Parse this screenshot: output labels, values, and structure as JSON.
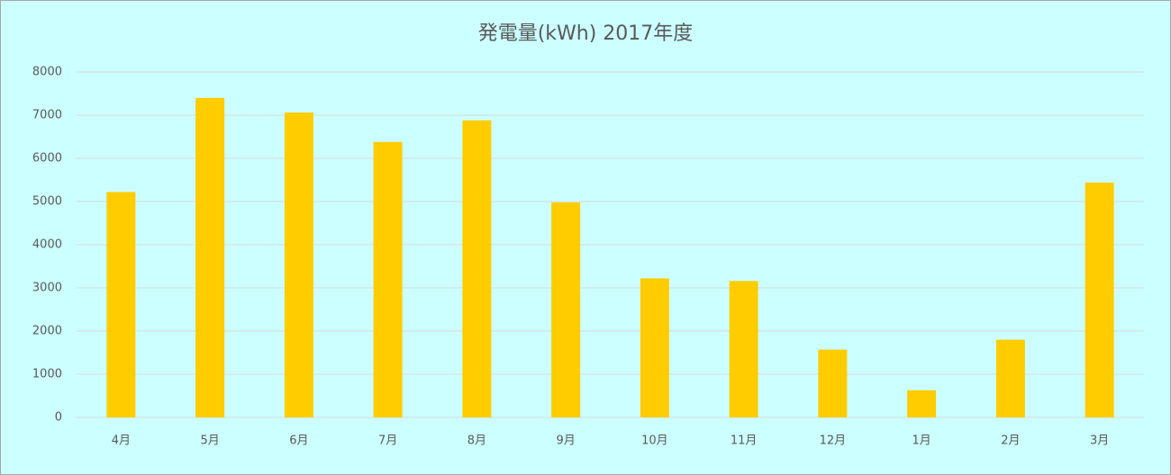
{
  "chart_data": {
    "type": "bar",
    "title": "発電量(kWh) 2017年度",
    "categories": [
      "4月",
      "5月",
      "6月",
      "7月",
      "8月",
      "9月",
      "10月",
      "11月",
      "12月",
      "1月",
      "2月",
      "3月"
    ],
    "values": [
      5220,
      7400,
      7060,
      6380,
      6880,
      4980,
      3220,
      3160,
      1570,
      630,
      1800,
      5440
    ],
    "color": "#ffcc00",
    "ylim": [
      0,
      8000
    ],
    "yticks": [
      0,
      1000,
      2000,
      3000,
      4000,
      5000,
      6000,
      7000,
      8000
    ],
    "grid": true
  }
}
